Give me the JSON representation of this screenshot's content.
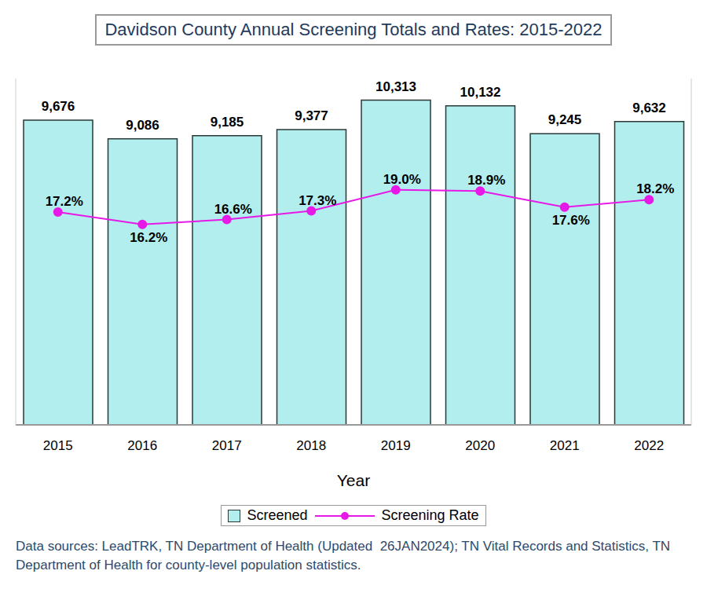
{
  "chart_data": {
    "type": "bar",
    "title": "Davidson County Annual Screening Totals and Rates: 2015-2022",
    "x_label": "Year",
    "categories": [
      "2015",
      "2016",
      "2017",
      "2018",
      "2019",
      "2020",
      "2021",
      "2022"
    ],
    "series": [
      {
        "name": "Screened",
        "type": "bar",
        "color": "#b3eeee",
        "values": [
          9676,
          9086,
          9185,
          9377,
          10313,
          10132,
          9245,
          9632
        ],
        "value_labels": [
          "9,676",
          "9,086",
          "9,185",
          "9,377",
          "10,313",
          "10,132",
          "9,245",
          "9,632"
        ]
      },
      {
        "name": "Screening Rate",
        "type": "line",
        "axis": "y2",
        "color": "#e619e6",
        "marker": "circle",
        "values": [
          17.2,
          16.2,
          16.6,
          17.3,
          19.0,
          18.9,
          17.6,
          18.2
        ],
        "value_labels": [
          "17.2%",
          "16.2%",
          "16.6%",
          "17.3%",
          "19.0%",
          "18.9%",
          "17.6%",
          "18.2%"
        ]
      }
    ],
    "ylim": [
      0,
      11000
    ],
    "yticks": [
      0,
      11000
    ],
    "y2lim": [
      0,
      28
    ],
    "y2ticks": [
      0,
      28
    ],
    "tick_labels": "x",
    "data_labels": true,
    "grid": false,
    "legend": "bottom",
    "annotations": [
      "Data sources: LeadTRK, TN Department of Health (Updated  26JAN2024); TN Vital Records and Statistics, TN Department of Health for county-level population statistics."
    ]
  }
}
